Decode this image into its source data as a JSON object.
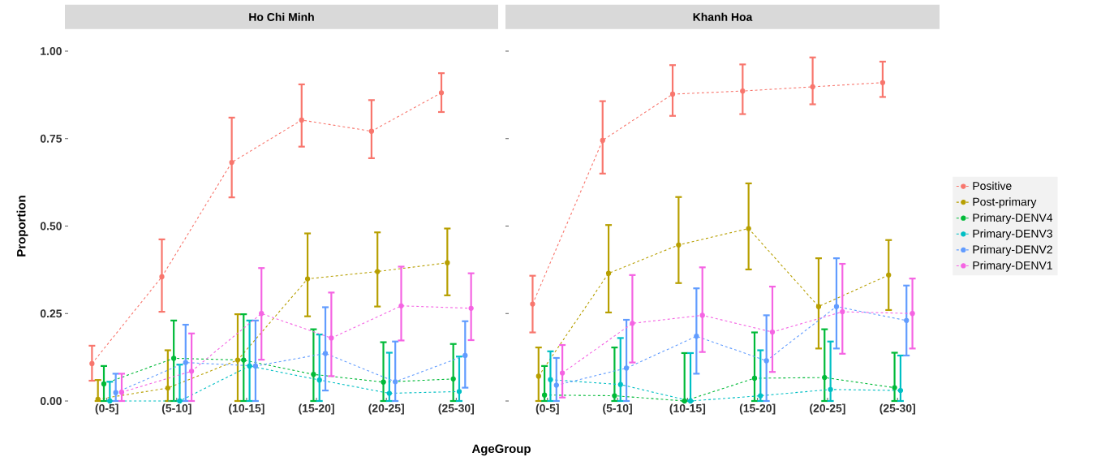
{
  "chart_data": [
    {
      "type": "line",
      "title": "Ho Chi Minh",
      "xlabel": "AgeGroup",
      "ylabel": "Proportion",
      "marker": "circle",
      "line_style": "dashed",
      "categories": [
        "(0-5]",
        "(5-10]",
        "(10-15]",
        "(15-20]",
        "(20-25]",
        "(25-30]"
      ],
      "ylim": [
        0,
        1
      ],
      "yticks": [
        {
          "value": 0,
          "label": "0.00"
        },
        {
          "value": 0.25,
          "label": "0.25"
        },
        {
          "value": 0.5,
          "label": "0.50"
        },
        {
          "value": 0.75,
          "label": "0.75"
        },
        {
          "value": 1,
          "label": "1.00"
        }
      ],
      "series": [
        {
          "color": "#f8766d",
          "values": [
            0.107,
            0.355,
            0.682,
            0.803,
            0.771,
            0.881
          ],
          "errors": [
            [
              0.058,
              0.158
            ],
            [
              0.255,
              0.462
            ],
            [
              0.582,
              0.81
            ],
            [
              0.727,
              0.905
            ],
            [
              0.694,
              0.86
            ],
            [
              0.826,
              0.937
            ]
          ]
        },
        {
          "color": "#b79f00",
          "values": [
            0.005,
            0.037,
            0.117,
            0.349,
            0.37,
            0.395
          ],
          "errors": [
            [
              0,
              0.06
            ],
            [
              0,
              0.145
            ],
            [
              0,
              0.248
            ],
            [
              0.242,
              0.479
            ],
            [
              0.27,
              0.482
            ],
            [
              0.302,
              0.493
            ]
          ]
        },
        {
          "color": "#00ba38",
          "values": [
            0.049,
            0.122,
            0.117,
            0.076,
            0.054,
            0.063
          ],
          "errors": [
            [
              0,
              0.1
            ],
            [
              0,
              0.23
            ],
            [
              0,
              0.248
            ],
            [
              0,
              0.205
            ],
            [
              0,
              0.168
            ],
            [
              0,
              0.163
            ]
          ]
        },
        {
          "color": "#00bfc4",
          "values": [
            0,
            0,
            0.1,
            0.06,
            0.022,
            0.027
          ],
          "errors": [
            [
              0,
              0.055
            ],
            [
              0,
              0.104
            ],
            [
              0,
              0.23
            ],
            [
              0,
              0.19
            ],
            [
              0,
              0.138
            ],
            [
              0,
              0.127
            ]
          ]
        },
        {
          "color": "#619cff",
          "values": [
            0.024,
            0.11,
            0.1,
            0.136,
            0.055,
            0.13
          ],
          "errors": [
            [
              0,
              0.078
            ],
            [
              0,
              0.218
            ],
            [
              0,
              0.23
            ],
            [
              0.03,
              0.268
            ],
            [
              0,
              0.17
            ],
            [
              0.038,
              0.228
            ]
          ]
        },
        {
          "color": "#f564e3",
          "values": [
            0.025,
            0.085,
            0.25,
            0.18,
            0.272,
            0.265
          ],
          "errors": [
            [
              0,
              0.078
            ],
            [
              0,
              0.193
            ],
            [
              0.118,
              0.38
            ],
            [
              0.071,
              0.31
            ],
            [
              0.173,
              0.384
            ],
            [
              0.174,
              0.365
            ]
          ]
        }
      ]
    },
    {
      "type": "line",
      "title": "Khanh Hoa",
      "marker": "circle",
      "line_style": "dashed",
      "legend": "right",
      "tick_labels": "x",
      "categories": [
        "(0-5]",
        "(5-10]",
        "(10-15]",
        "(15-20]",
        "(20-25]",
        "(25-30]"
      ],
      "ylim": [
        0,
        1
      ],
      "yticks": [
        {
          "value": 0,
          "label": null
        },
        {
          "value": 0.25,
          "label": null
        },
        {
          "value": 0.5,
          "label": null
        },
        {
          "value": 0.75,
          "label": null
        },
        {
          "value": 1,
          "label": null
        }
      ],
      "series": [
        {
          "name": "Positive",
          "color": "#f8766d",
          "values": [
            0.277,
            0.745,
            0.877,
            0.886,
            0.898,
            0.91
          ],
          "errors": [
            [
              0.196,
              0.358
            ],
            [
              0.65,
              0.857
            ],
            [
              0.815,
              0.96
            ],
            [
              0.82,
              0.962
            ],
            [
              0.848,
              0.982
            ],
            [
              0.869,
              0.97
            ]
          ]
        },
        {
          "name": "Post-primary",
          "color": "#b79f00",
          "values": [
            0.071,
            0.365,
            0.446,
            0.493,
            0.27,
            0.36
          ],
          "errors": [
            [
              0,
              0.153
            ],
            [
              0.253,
              0.503
            ],
            [
              0.337,
              0.583
            ],
            [
              0.376,
              0.622
            ],
            [
              0.15,
              0.408
            ],
            [
              0.26,
              0.46
            ]
          ]
        },
        {
          "name": "Primary-DENV4",
          "color": "#00ba38",
          "values": [
            0.017,
            0.015,
            0,
            0.065,
            0.067,
            0.038
          ],
          "errors": [
            [
              0,
              0.1
            ],
            [
              0,
              0.153
            ],
            [
              0,
              0.137
            ],
            [
              0,
              0.196
            ],
            [
              0,
              0.205
            ],
            [
              0,
              0.138
            ]
          ]
        },
        {
          "name": "Primary-DENV3",
          "color": "#00bfc4",
          "values": [
            0.061,
            0.047,
            0,
            0.015,
            0.033,
            0.03
          ],
          "errors": [
            [
              0,
              0.142
            ],
            [
              0,
              0.18
            ],
            [
              0,
              0.137
            ],
            [
              0,
              0.145
            ],
            [
              0,
              0.17
            ],
            [
              0,
              0.13
            ]
          ]
        },
        {
          "name": "Primary-DENV2",
          "color": "#619cff",
          "values": [
            0.045,
            0.094,
            0.185,
            0.115,
            0.27,
            0.23
          ],
          "errors": [
            [
              0,
              0.123
            ],
            [
              0,
              0.232
            ],
            [
              0.078,
              0.322
            ],
            [
              0,
              0.245
            ],
            [
              0.15,
              0.408
            ],
            [
              0.13,
              0.33
            ]
          ]
        },
        {
          "name": "Primary-DENV1",
          "color": "#f564e3",
          "values": [
            0.08,
            0.222,
            0.245,
            0.197,
            0.255,
            0.25
          ],
          "errors": [
            [
              0.01,
              0.16
            ],
            [
              0.11,
              0.36
            ],
            [
              0.14,
              0.382
            ],
            [
              0.083,
              0.327
            ],
            [
              0.135,
              0.392
            ],
            [
              0.15,
              0.35
            ]
          ]
        }
      ]
    }
  ]
}
